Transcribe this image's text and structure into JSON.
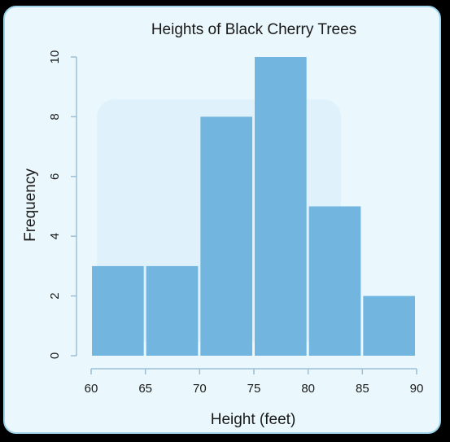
{
  "chart_data": {
    "type": "bar",
    "title": "Heights of Black Cherry Trees",
    "xlabel": "Height (feet)",
    "ylabel": "Frequency",
    "bins": [
      {
        "from": 60,
        "to": 65,
        "value": 3
      },
      {
        "from": 65,
        "to": 70,
        "value": 3
      },
      {
        "from": 70,
        "to": 75,
        "value": 8
      },
      {
        "from": 75,
        "to": 80,
        "value": 10
      },
      {
        "from": 80,
        "to": 85,
        "value": 5
      },
      {
        "from": 85,
        "to": 90,
        "value": 2
      }
    ],
    "x_ticks": [
      "60",
      "65",
      "70",
      "75",
      "80",
      "85",
      "90"
    ],
    "y_ticks": [
      "0",
      "2",
      "4",
      "6",
      "8",
      "10"
    ],
    "xlim": [
      60,
      90
    ],
    "ylim": [
      0,
      10
    ],
    "grid": false,
    "colors": {
      "bar": "#6cb2de",
      "axis": "#9cbfd6",
      "card_background": "#eaf8fd",
      "card_border": "#9fd3ea"
    }
  }
}
